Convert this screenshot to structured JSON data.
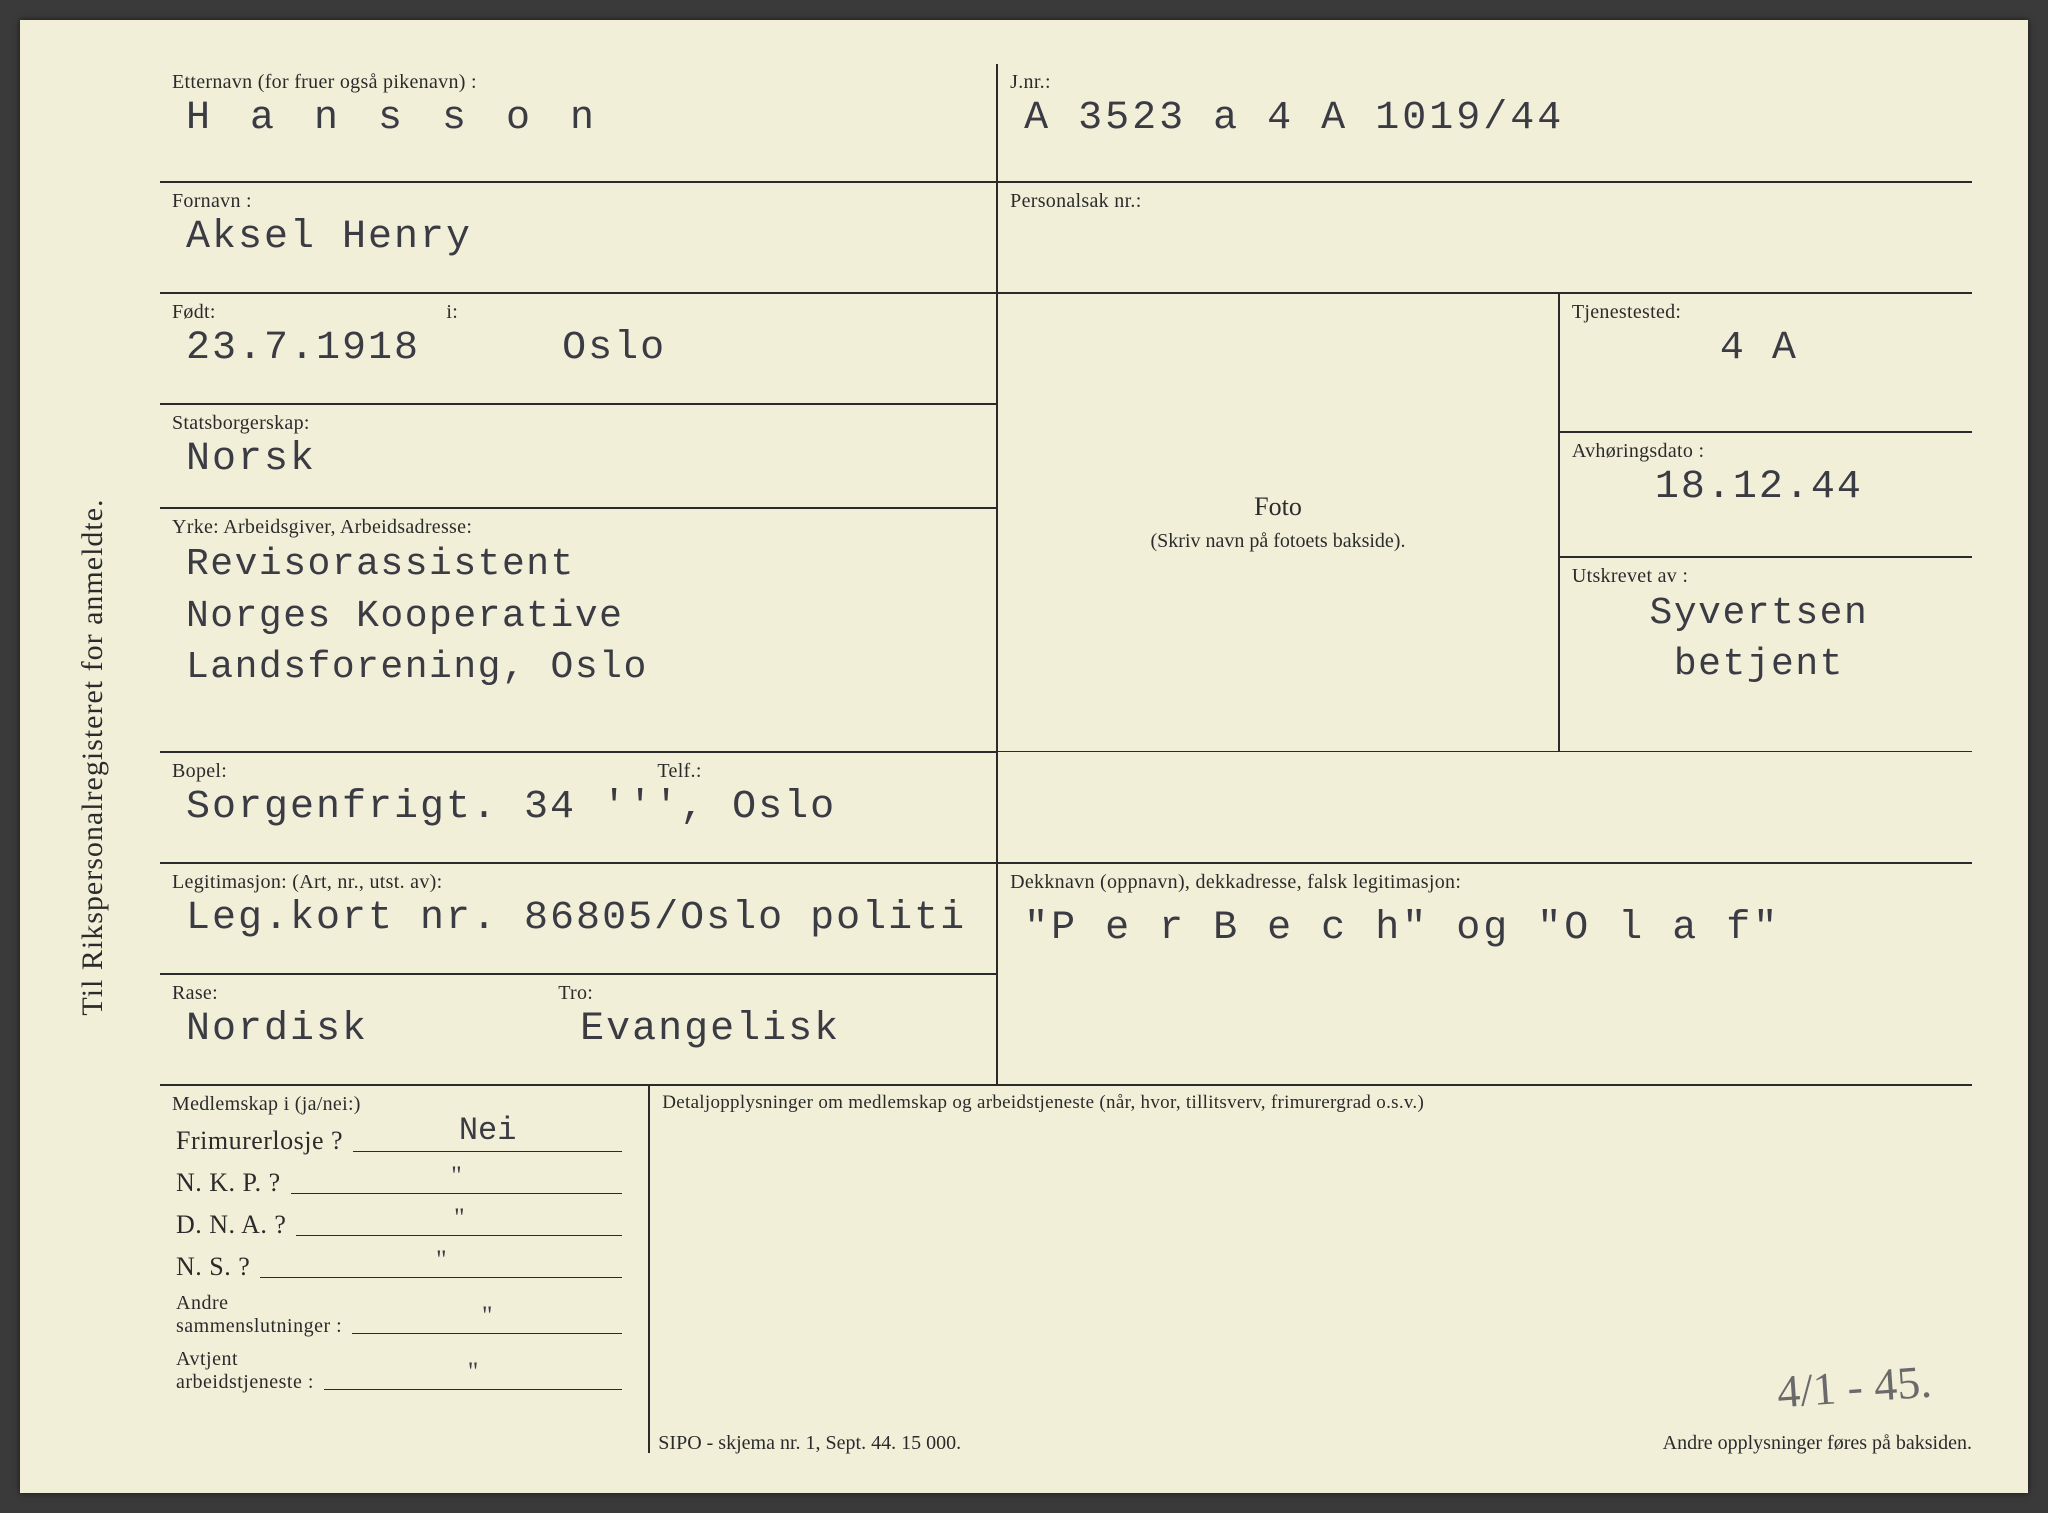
{
  "side_label": "Til Rikspersonalregisteret for anmeldte.",
  "etternavn": {
    "label": "Etternavn (for fruer også pikenavn) :",
    "value": "H a n s s o n"
  },
  "fornavn": {
    "label": "Fornavn :",
    "value": "Aksel Henry"
  },
  "fodt": {
    "label": "Født:",
    "label2": "i:",
    "value": "23.7.1918",
    "value2": "Oslo"
  },
  "stats": {
    "label": "Statsborgerskap:",
    "value": "Norsk"
  },
  "yrke": {
    "label": "Yrke:   Arbeidsgiver, Arbeidsadresse:",
    "value1": "Revisorassistent",
    "value2": "Norges Kooperative Landsforening, Oslo"
  },
  "bopel": {
    "label": "Bopel:",
    "label2": "Telf.:",
    "value": "Sorgenfrigt. 34 ''', Oslo"
  },
  "legit": {
    "label": "Legitimasjon:  (Art, nr., utst. av):",
    "value": "Leg.kort nr. 86805/Oslo politi"
  },
  "rase": {
    "label": "Rase:",
    "value": "Nordisk"
  },
  "tro": {
    "label": "Tro:",
    "value": "Evangelisk"
  },
  "jnr": {
    "label": "J.nr.:",
    "value": "A 3523 a  4 A  1019/44"
  },
  "psak": {
    "label": "Personalsak nr.:",
    "value": ""
  },
  "foto": {
    "label1": "Foto",
    "label2": "(Skriv navn på fotoets bakside)."
  },
  "tjen": {
    "label": "Tjenestested:",
    "value": "4 A"
  },
  "avh": {
    "label": "Avhøringsdato :",
    "value": "18.12.44"
  },
  "utsk": {
    "label": "Utskrevet av :",
    "value1": "Syvertsen",
    "value2": "betjent"
  },
  "dekk": {
    "label": "Dekknavn (oppnavn), dekkadresse, falsk legitimasjon:",
    "value": "\"P e r  B e c h\"  og  \"O l a f\""
  },
  "memb": {
    "header": "Medlemskap i (ja/nei:)",
    "rows": [
      {
        "label": "Frimurerlosje ?",
        "value": "Nei"
      },
      {
        "label": "N. K. P. ?",
        "value": "\""
      },
      {
        "label": "D. N. A. ?",
        "value": "\""
      },
      {
        "label": "N. S. ?",
        "value": "\""
      },
      {
        "label": "Andre\nsammenslutninger :",
        "value": "\""
      },
      {
        "label": "Avtjent\narbeidstjeneste :",
        "value": "\""
      }
    ]
  },
  "detalj_label": "Detaljopplysninger om medlemskap og arbeidstjeneste (når, hvor, tillitsverv, frimurergrad o.s.v.)",
  "footer_form": "SIPO - skjema nr. 1, Sept. 44.  15 000.",
  "footer_right": "Andre opplysninger føres på baksiden.",
  "handwritten": "4/1 - 45.",
  "colors": {
    "paper": "#f2efd9",
    "ink": "#2b2b2b",
    "typed": "#3b3b44",
    "surround": "#3a3a3a"
  }
}
